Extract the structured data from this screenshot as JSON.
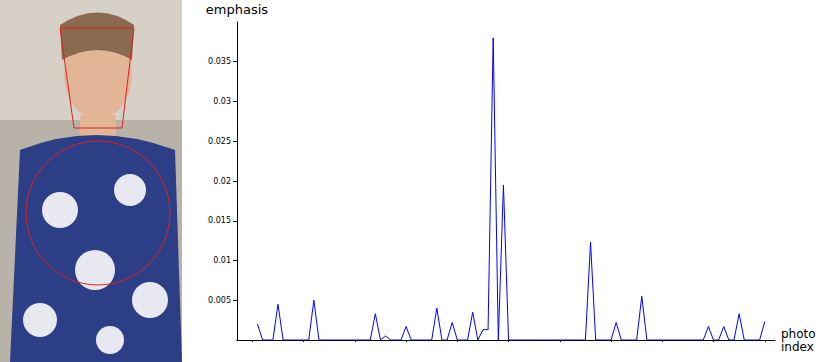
{
  "chart_data": {
    "type": "line",
    "y_label": "emphasis",
    "x_label": "photo index",
    "x": [
      1,
      2,
      3,
      4,
      5,
      6,
      7,
      8,
      9,
      10,
      11,
      12,
      13,
      14,
      15,
      16,
      17,
      18,
      19,
      20,
      21,
      22,
      23,
      24,
      25,
      26,
      27,
      28,
      29,
      30,
      31,
      32,
      33,
      34,
      35,
      36,
      37,
      38,
      39,
      40,
      41,
      42,
      43,
      44,
      45,
      46,
      47,
      48,
      49,
      50,
      51,
      52,
      53,
      54,
      55,
      56,
      57,
      58,
      59,
      60,
      61,
      62,
      63,
      64,
      65,
      66,
      67,
      68,
      69,
      70,
      71,
      72,
      73,
      74,
      75,
      76,
      77,
      78,
      79,
      80,
      81,
      82,
      83,
      84,
      85,
      86,
      87,
      88,
      89,
      90,
      91,
      92,
      93,
      94,
      95,
      96,
      97,
      98,
      99,
      100
    ],
    "values": [
      0.002,
      0,
      0,
      0,
      0.0045,
      0,
      0,
      0,
      0,
      0,
      0,
      0.005,
      0,
      0,
      0,
      0,
      0,
      0,
      0,
      0,
      0,
      0,
      0,
      0.0033,
      0,
      0.0005,
      0,
      0,
      0,
      0.0017,
      0,
      0,
      0,
      0,
      0,
      0.004,
      0,
      0,
      0.0022,
      0,
      0,
      0,
      0.0035,
      0,
      0.0013,
      0.0013,
      0.038,
      0,
      0.0195,
      0,
      0,
      0,
      0,
      0,
      0,
      0,
      0,
      0,
      0,
      0,
      0,
      0,
      0,
      0,
      0,
      0.0123,
      0,
      0,
      0,
      0,
      0.0022,
      0,
      0,
      0,
      0,
      0.0055,
      0,
      0,
      0,
      0,
      0,
      0,
      0,
      0,
      0,
      0,
      0,
      0,
      0.0017,
      0,
      0,
      0.0017,
      0,
      0,
      0.0033,
      0,
      0,
      0,
      0,
      0.0023
    ],
    "color": "#0000ff",
    "xlim": [
      -3,
      102
    ],
    "xticks": [
      0,
      10,
      20,
      30,
      40,
      50,
      60,
      70,
      80,
      90,
      100
    ],
    "ylim": [
      0,
      0.04
    ],
    "yticks": [
      0.005,
      0.01,
      0.015,
      0.02,
      0.025,
      0.03,
      0.035
    ],
    "tick_labels": "y",
    "grid": false
  }
}
